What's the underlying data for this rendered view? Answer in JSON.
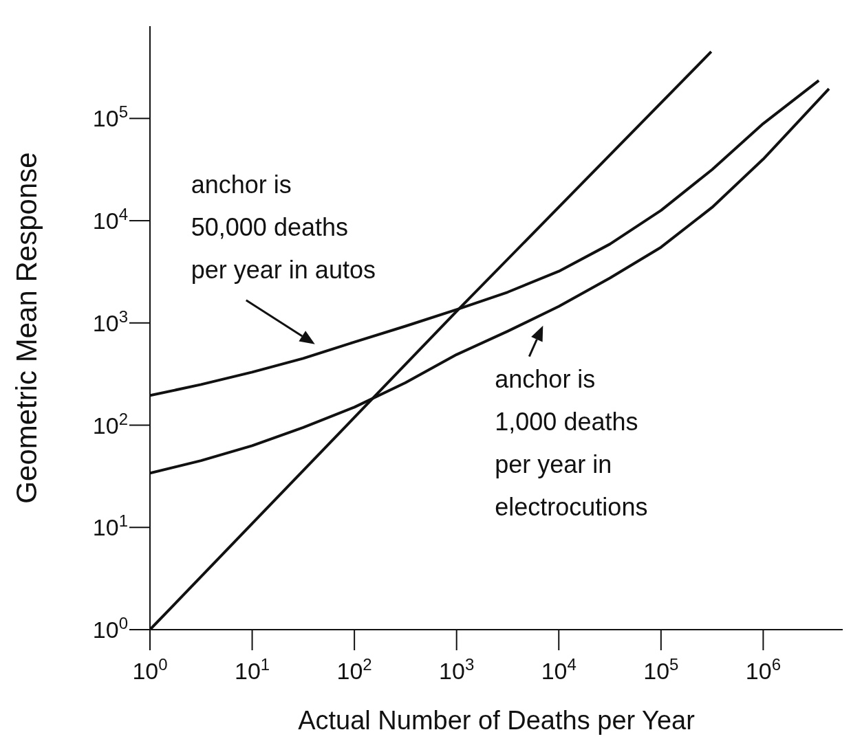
{
  "chart_data": {
    "type": "line",
    "xlabel": "Actual Number of Deaths per Year",
    "ylabel": "Geometric Mean Response",
    "log": "xy",
    "marker": "none",
    "line_style": "solid",
    "xlim": [
      1,
      6000000
    ],
    "ylim": [
      1,
      800000
    ],
    "xticks": [
      {
        "value": 1,
        "label": "10$^{0}$"
      },
      {
        "value": 10,
        "label": "10$^{1}$"
      },
      {
        "value": 100,
        "label": "10$^{2}$"
      },
      {
        "value": 1000,
        "label": "10$^{3}$"
      },
      {
        "value": 10000,
        "label": "10$^{4}$"
      },
      {
        "value": 100000,
        "label": "10$^{5}$"
      },
      {
        "value": 1000000,
        "label": "10$^{6}$"
      }
    ],
    "yticks": [
      {
        "value": 1,
        "label": "10$^{0}$"
      },
      {
        "value": 10,
        "label": "10$^{1}$"
      },
      {
        "value": 100,
        "label": "10$^{2}$"
      },
      {
        "value": 1000,
        "label": "10$^{3}$"
      },
      {
        "value": 10000,
        "label": "10$^{4}$"
      },
      {
        "value": 100000,
        "label": "10$^{5}$"
      }
    ],
    "series": [
      {
        "color": "#111111",
        "x": [
          1,
          1000,
          310000
        ],
        "values": [
          1,
          1300,
          450000
        ]
      },
      {
        "color": "#111111",
        "x": [
          1,
          3.16,
          10,
          31.6,
          100,
          316,
          1000,
          3162,
          10000,
          31620,
          100000,
          316200,
          1000000,
          3500000
        ],
        "values": [
          195,
          250,
          330,
          450,
          650,
          930,
          1350,
          2000,
          3200,
          5900,
          12600,
          31600,
          89000,
          235000
        ]
      },
      {
        "color": "#111111",
        "x": [
          1,
          3.16,
          10,
          31.6,
          100,
          316,
          1000,
          3162,
          10000,
          31620,
          100000,
          316200,
          1000000,
          4400000
        ],
        "values": [
          34,
          45,
          63,
          95,
          150,
          260,
          490,
          830,
          1450,
          2750,
          5500,
          13500,
          40000,
          195000
        ]
      }
    ],
    "annotations": [
      {
        "text": "anchor is\n50,000 deaths\nper year in autos",
        "x": 48,
        "y": 530
      },
      {
        "text": "anchor is\n1,000 deaths\nper year in\nelectrocutions",
        "x": 6000,
        "y": 1100
      }
    ]
  }
}
